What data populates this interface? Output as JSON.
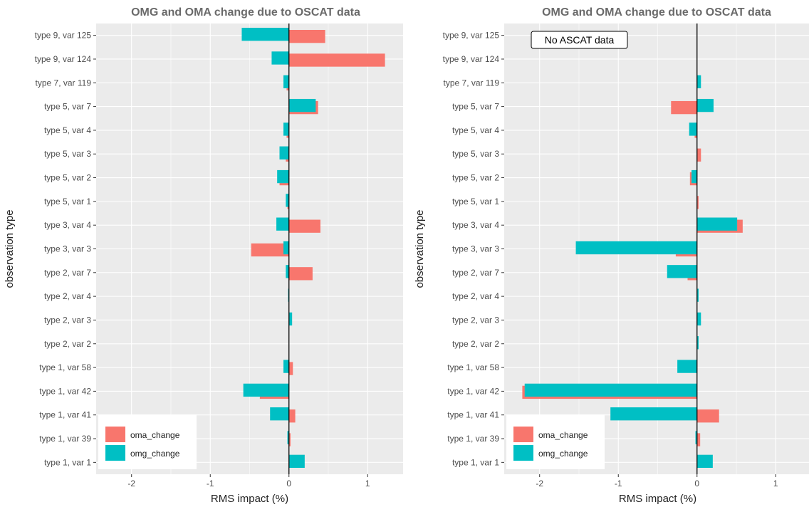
{
  "chart_data": [
    {
      "type": "bar",
      "orientation": "horizontal",
      "title": "OMG and OMA change due to OSCAT data",
      "xlabel": "RMS impact (%)",
      "ylabel": "observation type",
      "xlim": [
        -2.45,
        1.45
      ],
      "xticks": [
        "-2",
        "-1",
        "0",
        "1"
      ],
      "annotation": "",
      "categories": [
        "type 1, var 1",
        "type 1, var 39",
        "type 1, var 41",
        "type 1, var 42",
        "type 1, var 58",
        "type 2, var 2",
        "type 2, var 3",
        "type 2, var 4",
        "type 2, var 7",
        "type 3, var 3",
        "type 3, var 4",
        "type 5, var 1",
        "type 5, var 2",
        "type 5, var 3",
        "type 5, var 4",
        "type 5, var 7",
        "type 7, var 119",
        "type 9, var 124",
        "type 9, var 125"
      ],
      "series": [
        {
          "name": "oma_change",
          "color": "#F8766D",
          "values": [
            0.0,
            0.02,
            0.08,
            -0.37,
            0.05,
            0.0,
            0.0,
            0.0,
            0.3,
            -0.48,
            0.4,
            -0.02,
            -0.12,
            -0.04,
            -0.03,
            0.37,
            -0.03,
            1.22,
            0.46
          ]
        },
        {
          "name": "omg_change",
          "color": "#00BFC4",
          "values": [
            0.2,
            -0.02,
            -0.24,
            -0.58,
            -0.07,
            0.0,
            0.04,
            -0.01,
            -0.04,
            -0.07,
            -0.16,
            -0.04,
            -0.15,
            -0.12,
            -0.07,
            0.34,
            -0.07,
            -0.22,
            -0.6
          ]
        }
      ],
      "legend": {
        "position": "bottom-left",
        "entries": [
          "oma_change",
          "omg_change"
        ]
      },
      "grid": true
    },
    {
      "type": "bar",
      "orientation": "horizontal",
      "title": "OMG and OMA change due to OSCAT data",
      "xlabel": "RMS impact (%)",
      "ylabel": "observation type",
      "xlim": [
        -2.45,
        1.45
      ],
      "xticks": [
        "-2",
        "-1",
        "0",
        "1"
      ],
      "annotation": "No ASCAT data",
      "categories": [
        "type 1, var 1",
        "type 1, var 39",
        "type 1, var 41",
        "type 1, var 42",
        "type 1, var 58",
        "type 2, var 2",
        "type 2, var 3",
        "type 2, var 4",
        "type 2, var 7",
        "type 3, var 3",
        "type 3, var 4",
        "type 5, var 1",
        "type 5, var 2",
        "type 5, var 3",
        "type 5, var 4",
        "type 5, var 7",
        "type 7, var 119",
        "type 9, var 124",
        "type 9, var 125"
      ],
      "series": [
        {
          "name": "oma_change",
          "color": "#F8766D",
          "values": [
            0.0,
            0.04,
            0.28,
            -2.22,
            0.0,
            0.0,
            0.0,
            0.0,
            -0.12,
            -0.27,
            0.58,
            0.02,
            -0.09,
            0.05,
            -0.03,
            -0.33,
            0.0,
            0.0,
            0.0
          ]
        },
        {
          "name": "omg_change",
          "color": "#00BFC4",
          "values": [
            0.2,
            -0.02,
            -1.1,
            -2.19,
            -0.25,
            0.02,
            0.05,
            0.02,
            -0.38,
            -1.54,
            0.51,
            0.0,
            -0.07,
            0.0,
            -0.1,
            0.21,
            0.05,
            0.0,
            0.0
          ]
        }
      ],
      "legend": {
        "position": "bottom-left",
        "entries": [
          "oma_change",
          "omg_change"
        ]
      },
      "grid": true
    }
  ]
}
